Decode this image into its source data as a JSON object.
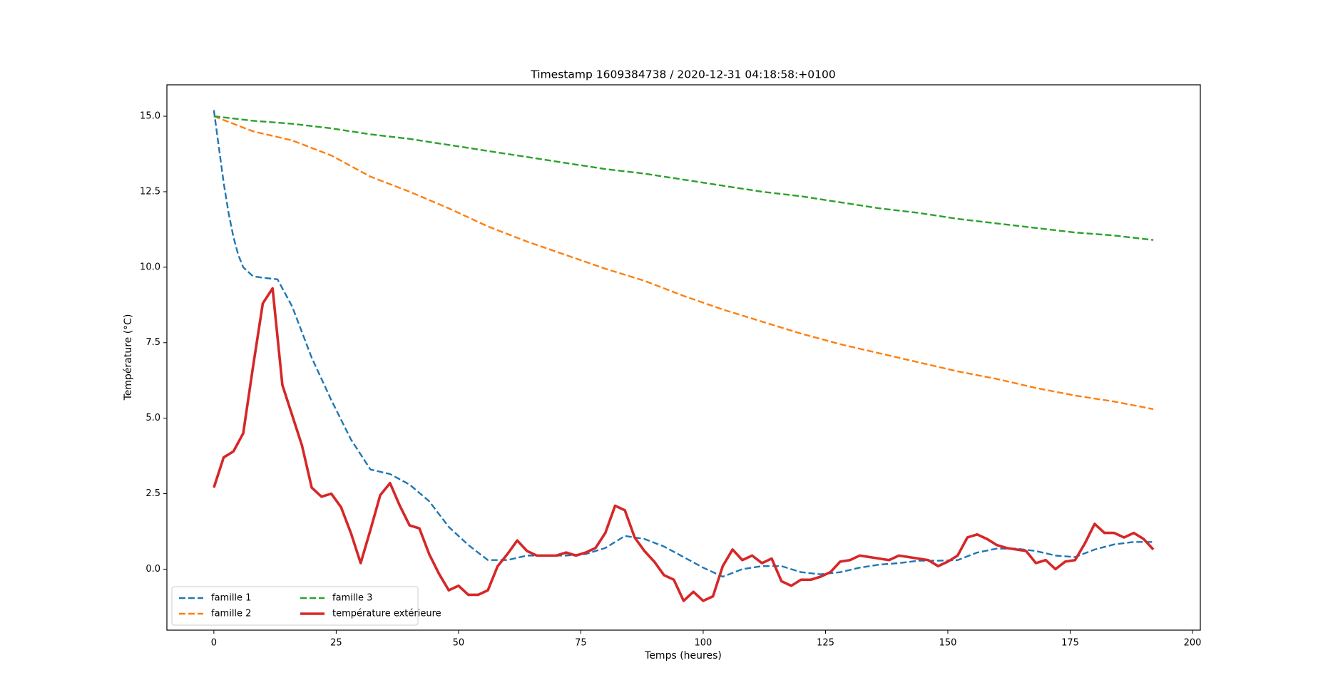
{
  "chart_data": {
    "type": "line",
    "title": "Timestamp 1609384738 / 2020-12-31 04:18:58:+0100",
    "xlabel": "Temps (heures)",
    "ylabel": "Température (°C)",
    "xlim": [
      -9.6,
      201.6
    ],
    "ylim": [
      -2.02,
      16.04
    ],
    "xticks": [
      0,
      25,
      50,
      75,
      100,
      125,
      150,
      175,
      200
    ],
    "yticks": [
      {
        "value": 0,
        "label": "0.0"
      },
      {
        "value": 2.5,
        "label": "2.5"
      },
      {
        "value": 5,
        "label": "5.0"
      },
      {
        "value": 7.5,
        "label": "7.5"
      },
      {
        "value": 10,
        "label": "10.0"
      },
      {
        "value": 12.5,
        "label": "12.5"
      },
      {
        "value": 15,
        "label": "15.0"
      }
    ],
    "grid": false,
    "legend": {
      "loc": "lower left",
      "ncol": 2
    },
    "series": [
      {
        "name": "famille 1",
        "color": "#1f77b4",
        "linestyle": "dashed",
        "x": [
          0,
          1,
          2,
          3,
          4,
          5,
          6,
          8,
          10,
          13,
          16,
          20,
          24,
          28,
          32,
          36,
          40,
          44,
          48,
          52,
          56,
          60,
          64,
          68,
          72,
          76,
          80,
          84,
          88,
          92,
          96,
          100,
          104,
          108,
          112,
          116,
          120,
          124,
          128,
          132,
          136,
          140,
          144,
          148,
          152,
          156,
          160,
          164,
          168,
          172,
          176,
          180,
          184,
          188,
          192
        ],
        "values": [
          15.2,
          14.0,
          12.8,
          11.8,
          11.0,
          10.4,
          10.0,
          9.7,
          9.65,
          9.6,
          8.7,
          7.0,
          5.6,
          4.3,
          3.3,
          3.15,
          2.8,
          2.25,
          1.4,
          0.8,
          0.3,
          0.3,
          0.45,
          0.45,
          0.45,
          0.5,
          0.7,
          1.1,
          1.0,
          0.75,
          0.4,
          0.05,
          -0.25,
          0.0,
          0.1,
          0.1,
          -0.1,
          -0.17,
          -0.1,
          0.05,
          0.15,
          0.2,
          0.28,
          0.28,
          0.3,
          0.55,
          0.68,
          0.68,
          0.6,
          0.45,
          0.4,
          0.65,
          0.82,
          0.9,
          0.9
        ]
      },
      {
        "name": "famille 2",
        "color": "#ff7f0e",
        "linestyle": "dashed",
        "x": [
          0,
          8,
          16,
          24,
          32,
          40,
          48,
          56,
          64,
          72,
          80,
          88,
          96,
          104,
          112,
          120,
          128,
          136,
          144,
          152,
          160,
          168,
          176,
          184,
          192
        ],
        "values": [
          15.0,
          14.5,
          14.2,
          13.7,
          13.0,
          12.5,
          11.95,
          11.35,
          10.85,
          10.4,
          9.95,
          9.55,
          9.05,
          8.6,
          8.2,
          7.8,
          7.45,
          7.15,
          6.85,
          6.55,
          6.3,
          6.0,
          5.75,
          5.55,
          5.3
        ]
      },
      {
        "name": "famille 3",
        "color": "#2ca02c",
        "linestyle": "dashed",
        "x": [
          0,
          8,
          16,
          24,
          32,
          40,
          48,
          56,
          64,
          72,
          80,
          88,
          96,
          104,
          112,
          120,
          128,
          136,
          144,
          152,
          160,
          168,
          176,
          184,
          192
        ],
        "values": [
          15.0,
          14.85,
          14.75,
          14.6,
          14.4,
          14.25,
          14.05,
          13.85,
          13.65,
          13.45,
          13.25,
          13.1,
          12.9,
          12.7,
          12.5,
          12.35,
          12.15,
          11.95,
          11.8,
          11.6,
          11.45,
          11.3,
          11.15,
          11.05,
          10.9
        ]
      },
      {
        "name": "température extérieure",
        "color": "#d62728",
        "linestyle": "solid",
        "x": [
          0,
          2,
          4,
          6,
          8,
          10,
          12,
          14,
          16,
          18,
          20,
          22,
          24,
          26,
          28,
          30,
          32,
          34,
          36,
          38,
          40,
          42,
          44,
          46,
          48,
          50,
          52,
          54,
          56,
          58,
          60,
          62,
          64,
          66,
          68,
          70,
          72,
          74,
          76,
          78,
          80,
          82,
          84,
          86,
          88,
          90,
          92,
          94,
          96,
          98,
          100,
          102,
          104,
          106,
          108,
          110,
          112,
          114,
          116,
          118,
          120,
          122,
          124,
          126,
          128,
          130,
          132,
          134,
          136,
          138,
          140,
          142,
          144,
          146,
          148,
          150,
          152,
          154,
          156,
          158,
          160,
          162,
          164,
          166,
          168,
          170,
          172,
          174,
          176,
          178,
          180,
          182,
          184,
          186,
          188,
          190,
          192
        ],
        "values": [
          2.7,
          3.7,
          3.9,
          4.5,
          6.7,
          8.8,
          9.3,
          6.1,
          5.1,
          4.1,
          2.7,
          2.4,
          2.5,
          2.05,
          1.2,
          0.2,
          1.3,
          2.45,
          2.85,
          2.1,
          1.45,
          1.35,
          0.5,
          -0.15,
          -0.7,
          -0.55,
          -0.85,
          -0.85,
          -0.7,
          0.1,
          0.5,
          0.95,
          0.6,
          0.45,
          0.45,
          0.45,
          0.55,
          0.45,
          0.55,
          0.7,
          1.2,
          2.1,
          1.95,
          1.05,
          0.6,
          0.25,
          -0.2,
          -0.35,
          -1.05,
          -0.75,
          -1.05,
          -0.9,
          0.1,
          0.65,
          0.3,
          0.45,
          0.2,
          0.35,
          -0.4,
          -0.55,
          -0.35,
          -0.35,
          -0.25,
          -0.1,
          0.25,
          0.3,
          0.45,
          0.4,
          0.35,
          0.3,
          0.45,
          0.4,
          0.35,
          0.3,
          0.1,
          0.25,
          0.45,
          1.05,
          1.15,
          1.0,
          0.8,
          0.7,
          0.65,
          0.6,
          0.2,
          0.3,
          0.0,
          0.25,
          0.3,
          0.85,
          1.5,
          1.2,
          1.2,
          1.05,
          1.2,
          1.0,
          0.65
        ]
      }
    ]
  }
}
